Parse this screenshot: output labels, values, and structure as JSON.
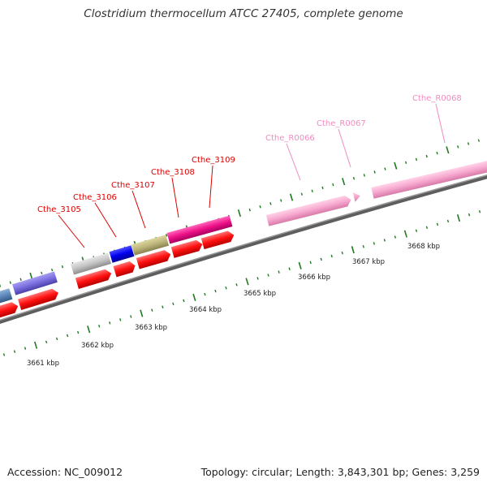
{
  "title": "Clostridium thermocellum ATCC 27405, complete genome",
  "footer": {
    "accession": "Accession: NC_009012",
    "topology": "Topology: circular; Length: 3,843,301 bp; Genes: 3,259"
  },
  "scale_labels": [
    "3661 kbp",
    "3662 kbp",
    "3663 kbp",
    "3664 kbp",
    "3665 kbp",
    "3666 kbp",
    "3667 kbp",
    "3668 kbp"
  ],
  "gene_labels": [
    {
      "text": "Cthe_3105",
      "color": "#dd0000"
    },
    {
      "text": "Cthe_3106",
      "color": "#dd0000"
    },
    {
      "text": "Cthe_3107",
      "color": "#dd0000"
    },
    {
      "text": "Cthe_3108",
      "color": "#dd0000"
    },
    {
      "text": "Cthe_3109",
      "color": "#dd0000"
    },
    {
      "text": "Cthe_R0066",
      "color": "#f08cc0"
    },
    {
      "text": "Cthe_R0067",
      "color": "#f08cc0"
    },
    {
      "text": "Cthe_R0068",
      "color": "#f08cc0"
    }
  ],
  "colors": {
    "backbone": "#7a7a7a",
    "tick": "#1f7a1f",
    "cds": "#ff1a1a",
    "rna": "#f7a8cf"
  }
}
